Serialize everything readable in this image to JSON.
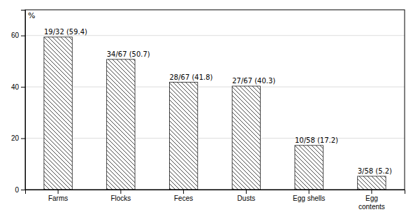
{
  "chart_data": {
    "type": "bar",
    "categories": [
      "Farms",
      "Flocks",
      "Feces",
      "Dusts",
      "Egg shells",
      "Egg\ncontents"
    ],
    "values": [
      59.4,
      50.7,
      41.8,
      40.3,
      17.2,
      5.2
    ],
    "value_labels": [
      "19/32 (59.4)",
      "34/67 (50.7)",
      "28/67 (41.8)",
      "27/67 (40.3)",
      "10/58 (17.2)",
      "3/58 (5.2)"
    ],
    "data_labels": true,
    "ylabel": "%",
    "color": "#1a1a1a",
    "ylim": [
      0,
      70
    ],
    "yticks": [
      0,
      20,
      40,
      60
    ],
    "grid": true
  }
}
